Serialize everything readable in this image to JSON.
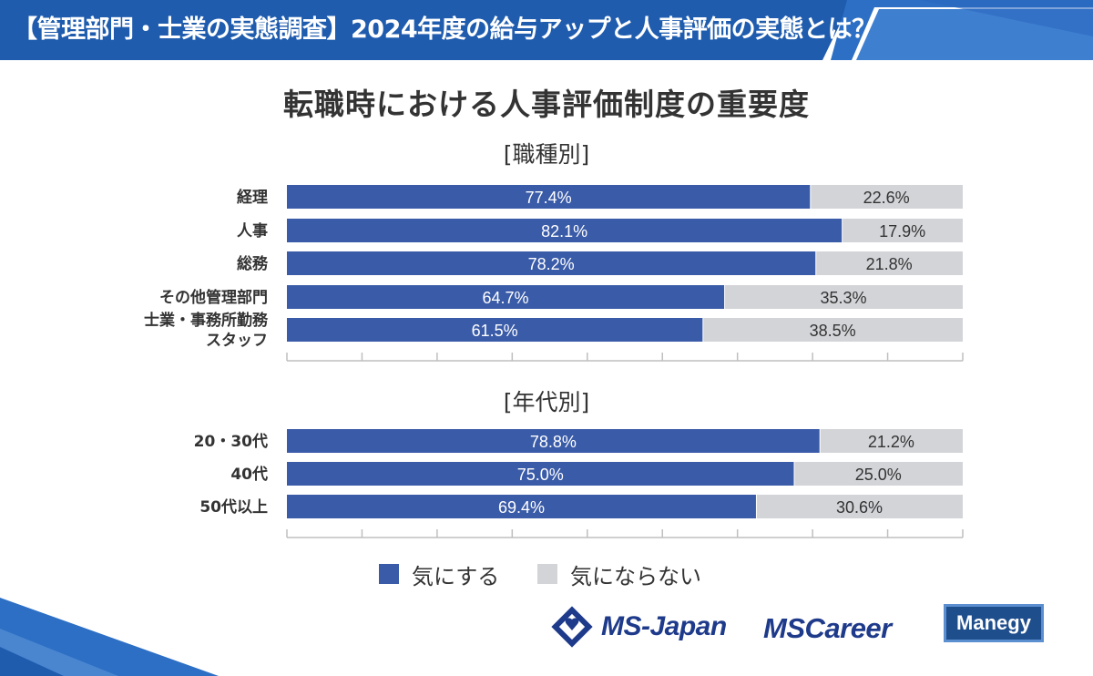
{
  "header": {
    "title": "【管理部門・士業の実態調査】2024年度の給与アップと人事評価の実態とは？"
  },
  "colors": {
    "primary": "#3a5ba8",
    "secondary": "#d3d4d8",
    "header_bg": "#1f5cae",
    "header_accent": "#4a86d0",
    "tick": "#bfbfbf"
  },
  "chart_data": [
    {
      "type": "bar",
      "orientation": "horizontal",
      "stacked": true,
      "title": "転職時における人事評価制度の重要度",
      "subtitle": "[職種別]",
      "categories": [
        "経理",
        "人事",
        "総務",
        "その他管理部門",
        "士業・事務所勤務\nスタッフ"
      ],
      "series": [
        {
          "name": "気にする",
          "values": [
            77.4,
            82.1,
            78.2,
            64.7,
            61.5
          ]
        },
        {
          "name": "気にならない",
          "values": [
            22.6,
            17.9,
            21.8,
            35.3,
            38.5
          ]
        }
      ],
      "labels": {
        "気にする": [
          "77.4%",
          "82.1%",
          "78.2%",
          "64.7%",
          "61.5%"
        ],
        "気にならない": [
          "22.6%",
          "17.9%",
          "21.8%",
          "35.3%",
          "38.5%"
        ]
      },
      "xlim": [
        0,
        100
      ],
      "grid": false
    },
    {
      "type": "bar",
      "orientation": "horizontal",
      "stacked": true,
      "subtitle": "[年代別]",
      "categories": [
        "20・30代",
        "40代",
        "50代以上"
      ],
      "series": [
        {
          "name": "気にする",
          "values": [
            78.8,
            75.0,
            69.4
          ]
        },
        {
          "name": "気にならない",
          "values": [
            21.2,
            25.0,
            30.6
          ]
        }
      ],
      "labels": {
        "気にする": [
          "78.8%",
          "75.0%",
          "69.4%"
        ],
        "気にならない": [
          "21.2%",
          "25.0%",
          "30.6%"
        ]
      },
      "xlim": [
        0,
        100
      ],
      "grid": false
    }
  ],
  "legend": {
    "items": [
      {
        "label": "気にする",
        "color": "#3a5ba8"
      },
      {
        "label": "気にならない",
        "color": "#d3d4d8"
      }
    ]
  },
  "logos": {
    "ms_japan": "MS-Japan",
    "ms_career": "MSCareer",
    "manegy": "Manegy"
  }
}
